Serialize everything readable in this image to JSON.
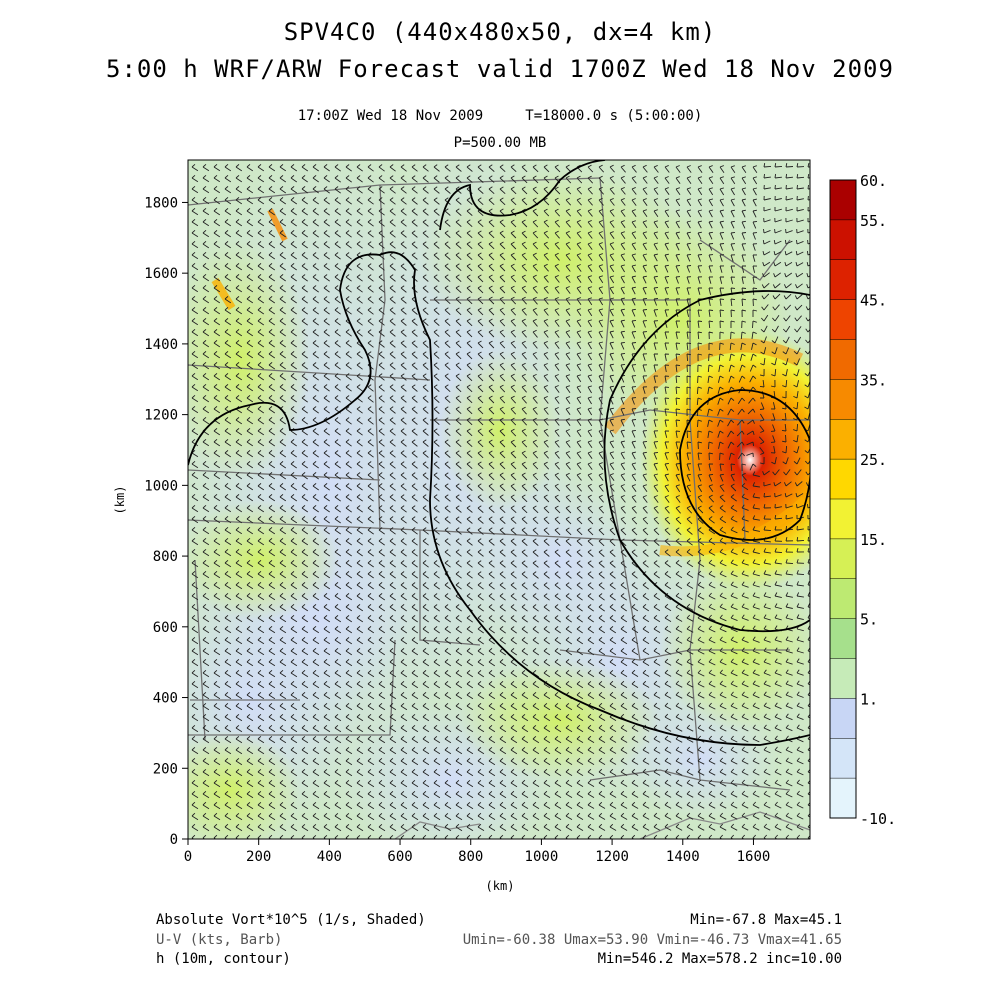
{
  "header": {
    "title_line1": "SPV4C0 (440x480x50, dx=4 km)",
    "title_line2": "5:00 h WRF/ARW Forecast valid 1700Z Wed 18 Nov 2009",
    "valid_time": "17:00Z Wed 18 Nov 2009",
    "sim_time": "T=18000.0 s (5:00:00)",
    "level": "P=500.00 MB"
  },
  "axes": {
    "x_label": "(km)",
    "y_label": "(km)",
    "x_ticks": [
      "0",
      "200",
      "400",
      "600",
      "800",
      "1000",
      "1200",
      "1400",
      "1600"
    ],
    "y_ticks": [
      "0",
      "200",
      "400",
      "600",
      "800",
      "1000",
      "1200",
      "1400",
      "1600",
      "1800"
    ],
    "x_range_km": [
      0,
      1760
    ],
    "y_range_km": [
      0,
      1920
    ]
  },
  "colorbar": {
    "labels": [
      "60.",
      "55.",
      "45.",
      "35.",
      "25.",
      "15.",
      "5.",
      "1.",
      "-10."
    ],
    "colors": [
      "#aa0000",
      "#cc1100",
      "#dd2200",
      "#ee4400",
      "#f06a00",
      "#f78a00",
      "#fbb000",
      "#ffd800",
      "#f2f233",
      "#d6f055",
      "#bdea72",
      "#a6e08c",
      "#c6ebb8",
      "#c8d6f5",
      "#d4e5f8",
      "#e4f4fc"
    ]
  },
  "footer": {
    "field1_name": "Absolute Vort*10^5 (1/s, Shaded)",
    "field1_stats": "Min=-67.8 Max=45.1",
    "field2_name": "U-V (kts, Barb)",
    "field2_stats": "Umin=-60.38 Umax=53.90 Vmin=-46.73 Vmax=41.65",
    "field3_name": "h (10m, contour)",
    "field3_stats": "Min=546.2 Max=578.2 inc=10.00"
  },
  "colors": {
    "background": "#ffffff",
    "contour": "#000000",
    "borders": "#707070",
    "barbs": "#222222"
  }
}
